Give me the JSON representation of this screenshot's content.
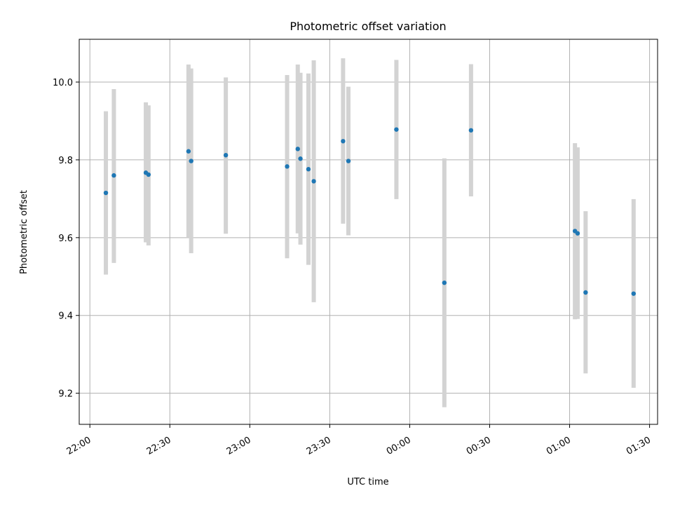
{
  "chart_data": {
    "type": "scatter",
    "title": "Photometric offset variation",
    "xlabel": "UTC time",
    "ylabel": "Photometric offset",
    "x_axis_type": "time",
    "x_ticks": [
      "22:00",
      "22:30",
      "23:00",
      "23:30",
      "00:00",
      "00:30",
      "01:00",
      "01:30"
    ],
    "y_ticks": [
      9.2,
      9.4,
      9.6,
      9.8,
      10.0
    ],
    "y_tick_labels": [
      "9.2",
      "9.4",
      "9.6",
      "9.8",
      "10.0"
    ],
    "xlim": [
      "21:56",
      "01:33"
    ],
    "ylim": [
      9.12,
      10.11
    ],
    "grid": true,
    "point_color": "#1f77b4",
    "errorbar_color": "#d3d3d3",
    "points": [
      {
        "x": "22:06",
        "y": 9.715,
        "err_low": 9.505,
        "err_high": 9.925
      },
      {
        "x": "22:09",
        "y": 9.76,
        "err_low": 9.535,
        "err_high": 9.982
      },
      {
        "x": "22:21",
        "y": 9.767,
        "err_low": 9.588,
        "err_high": 9.948
      },
      {
        "x": "22:22",
        "y": 9.762,
        "err_low": 9.58,
        "err_high": 9.94
      },
      {
        "x": "22:37",
        "y": 9.822,
        "err_low": 9.6,
        "err_high": 10.045
      },
      {
        "x": "22:38",
        "y": 9.797,
        "err_low": 9.56,
        "err_high": 10.035
      },
      {
        "x": "22:51",
        "y": 9.812,
        "err_low": 9.61,
        "err_high": 10.012
      },
      {
        "x": "23:14",
        "y": 9.783,
        "err_low": 9.547,
        "err_high": 10.018
      },
      {
        "x": "23:18",
        "y": 9.828,
        "err_low": 9.611,
        "err_high": 10.045
      },
      {
        "x": "23:19",
        "y": 9.803,
        "err_low": 9.582,
        "err_high": 10.024
      },
      {
        "x": "23:22",
        "y": 9.776,
        "err_low": 9.53,
        "err_high": 10.022
      },
      {
        "x": "23:24",
        "y": 9.745,
        "err_low": 9.434,
        "err_high": 10.056
      },
      {
        "x": "23:35",
        "y": 9.848,
        "err_low": 9.636,
        "err_high": 10.061
      },
      {
        "x": "23:37",
        "y": 9.797,
        "err_low": 9.606,
        "err_high": 9.988
      },
      {
        "x": "23:55",
        "y": 9.878,
        "err_low": 9.699,
        "err_high": 10.057
      },
      {
        "x": "00:13",
        "y": 9.484,
        "err_low": 9.164,
        "err_high": 9.804
      },
      {
        "x": "00:23",
        "y": 9.876,
        "err_low": 9.706,
        "err_high": 10.046
      },
      {
        "x": "01:02",
        "y": 9.617,
        "err_low": 9.39,
        "err_high": 9.843
      },
      {
        "x": "01:03",
        "y": 9.611,
        "err_low": 9.391,
        "err_high": 9.832
      },
      {
        "x": "01:06",
        "y": 9.459,
        "err_low": 9.251,
        "err_high": 9.668
      },
      {
        "x": "01:24",
        "y": 9.456,
        "err_low": 9.214,
        "err_high": 9.699
      }
    ]
  }
}
